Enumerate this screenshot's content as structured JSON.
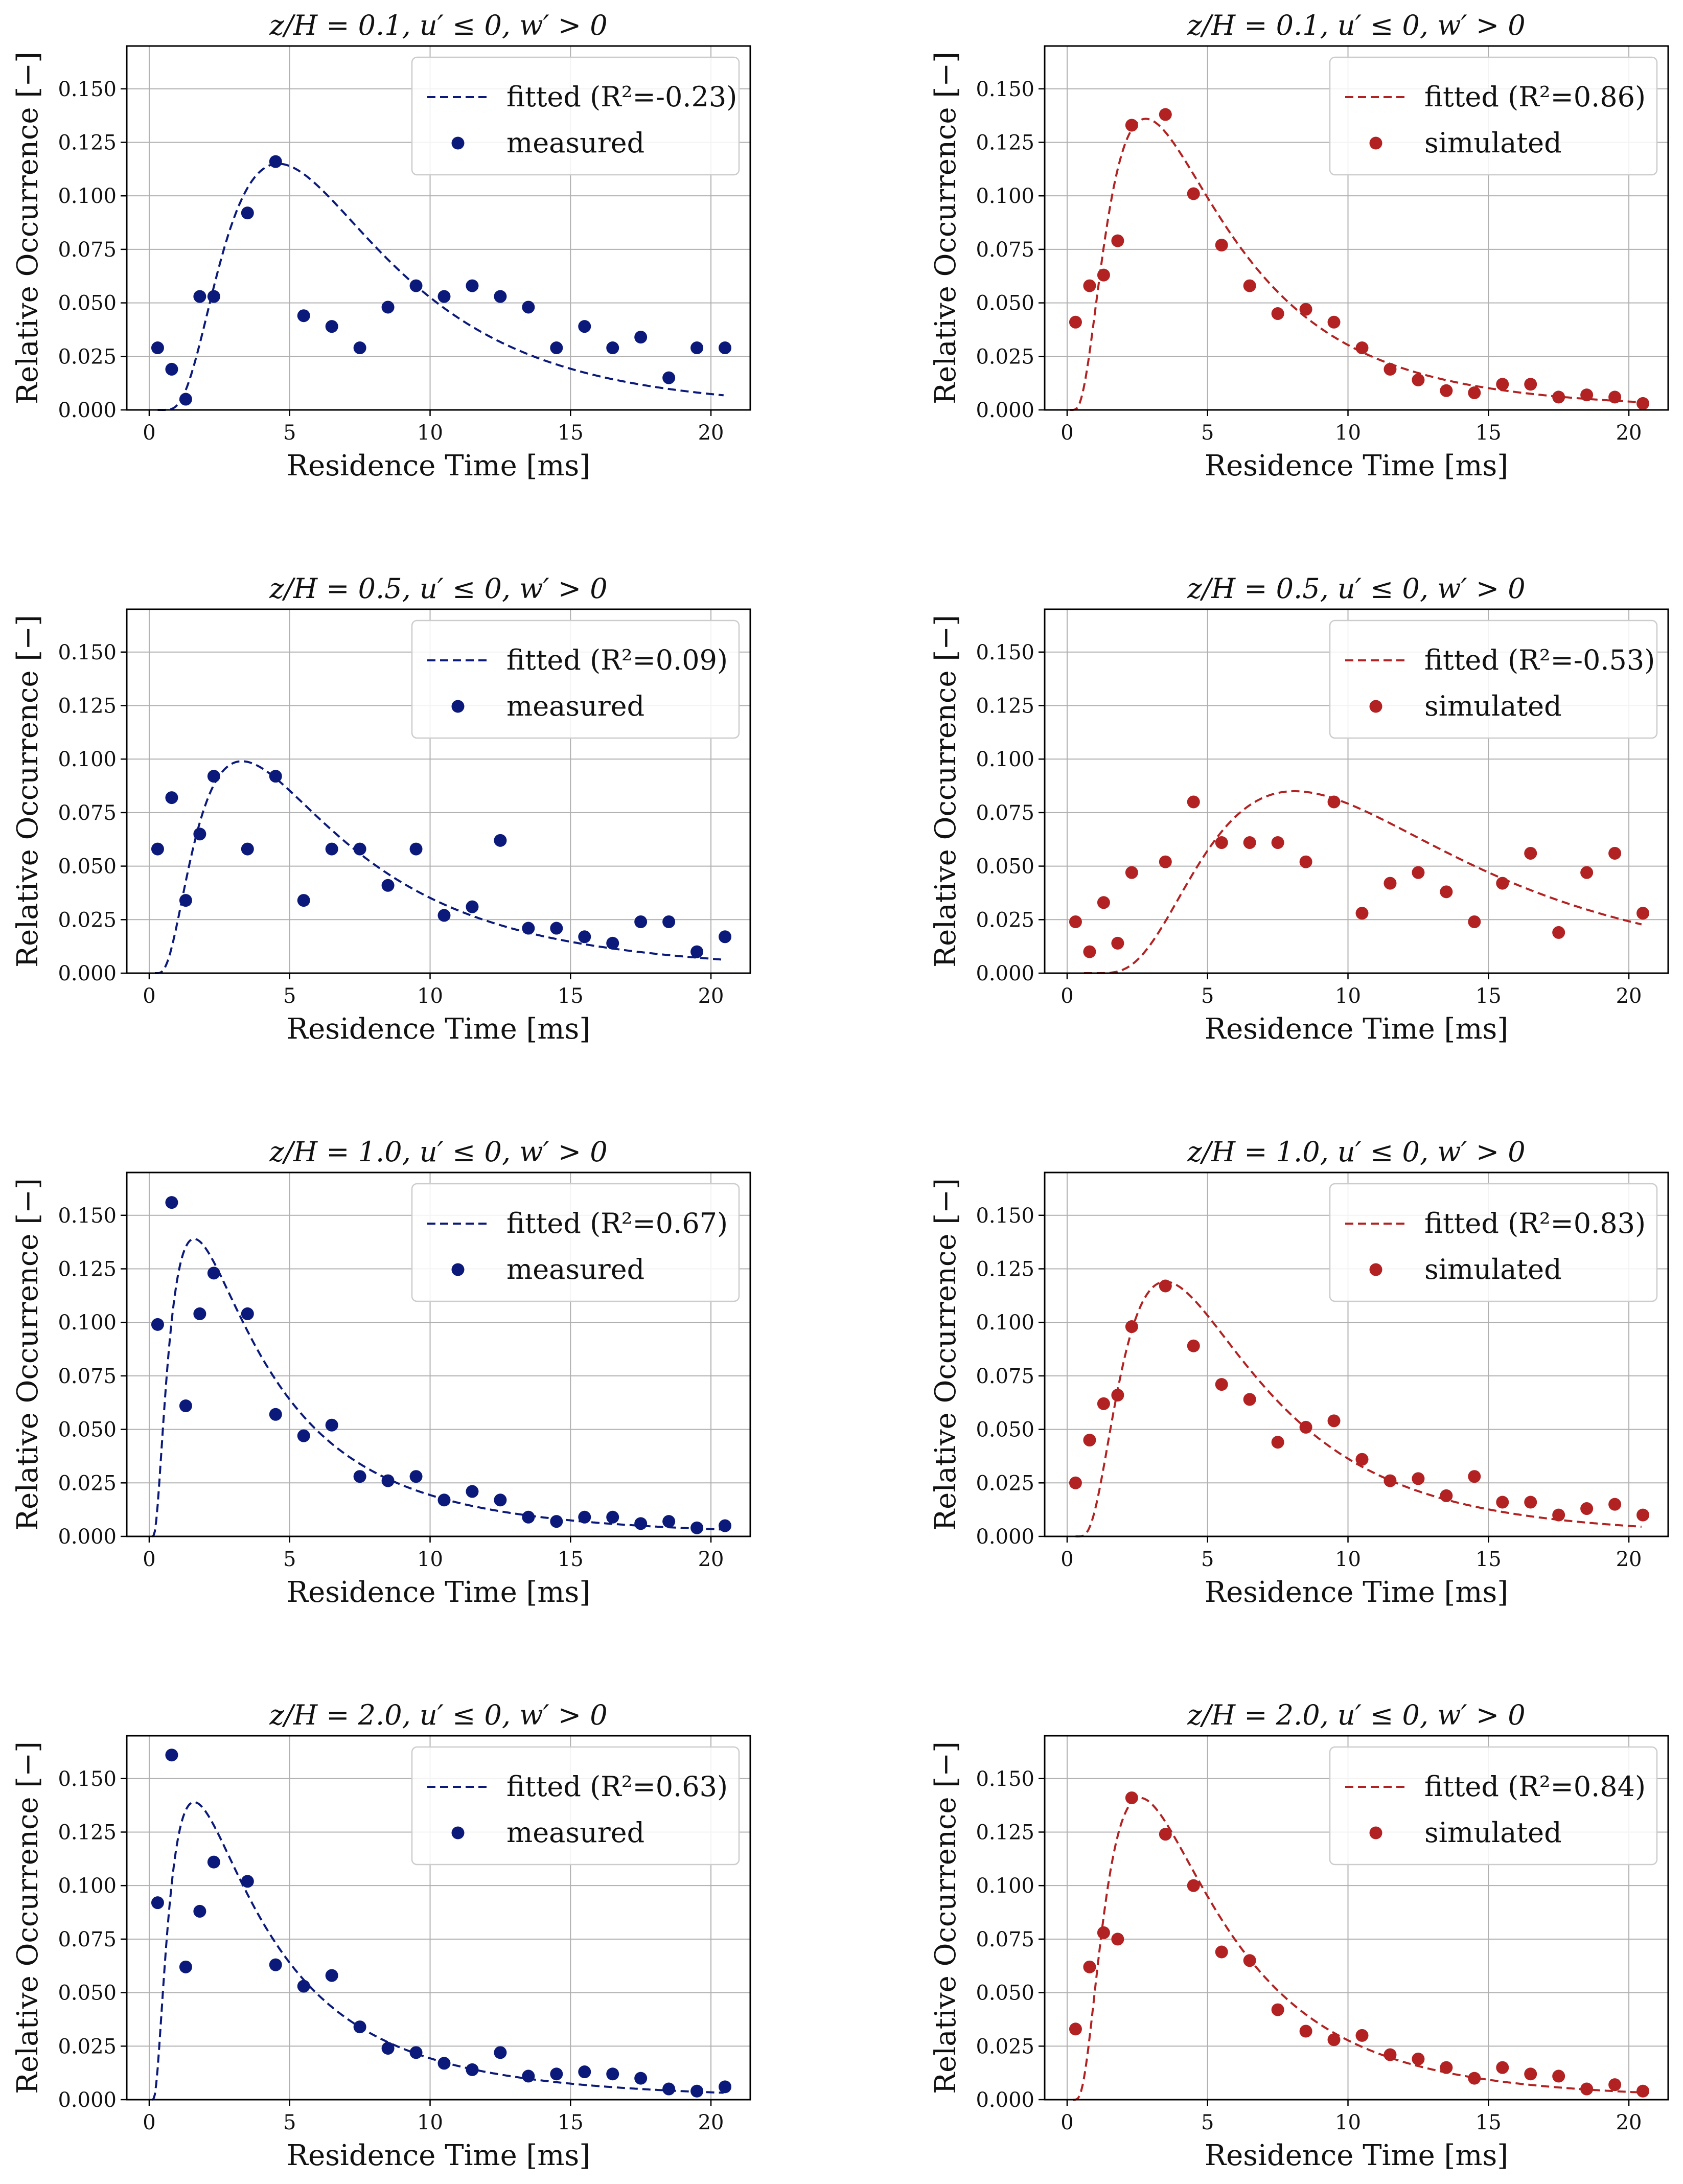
{
  "colors": {
    "blue": "#0b1a7a",
    "red": "#b22222",
    "grid": "#b0b0b0"
  },
  "chart_data": [
    {
      "type": "scatter",
      "title": "z/H = 0.1, u′ ≤ 0, w′ > 0",
      "xlabel": "Residence Time [ms]",
      "ylabel": "Relative Occurrence [−]",
      "xlim": [
        -0.8,
        21.4
      ],
      "ylim": [
        0,
        0.17
      ],
      "xticks": [
        "0",
        "5",
        "10",
        "15",
        "20"
      ],
      "yticks": [
        "0.000",
        "0.025",
        "0.050",
        "0.075",
        "0.100",
        "0.125",
        "0.150"
      ],
      "color": "blue",
      "fit_label": "fitted (R²=-0.23)",
      "points_label": "measured",
      "fit": {
        "mode": 4.3,
        "sigma": 0.65,
        "peak": 0.115,
        "onset": 0.3
      },
      "x": [
        0.3,
        0.8,
        1.3,
        1.8,
        2.3,
        3.5,
        4.5,
        5.5,
        6.5,
        7.5,
        8.5,
        9.5,
        10.5,
        11.5,
        12.5,
        13.5,
        14.5,
        15.5,
        16.5,
        17.5,
        18.5,
        19.5,
        20.5
      ],
      "y": [
        0.029,
        0.019,
        0.005,
        0.053,
        0.053,
        0.092,
        0.116,
        0.044,
        0.039,
        0.029,
        0.048,
        0.058,
        0.053,
        0.058,
        0.053,
        0.048,
        0.029,
        0.039,
        0.029,
        0.034,
        0.015,
        0.029,
        0.029
      ]
    },
    {
      "type": "scatter",
      "title": "z/H = 0.1, u′ ≤ 0, w′ > 0",
      "xlabel": "Residence Time [ms]",
      "ylabel": "Relative Occurrence [−]",
      "xlim": [
        -0.8,
        21.4
      ],
      "ylim": [
        0,
        0.17
      ],
      "xticks": [
        "0",
        "5",
        "10",
        "15",
        "20"
      ],
      "yticks": [
        "0.000",
        "0.025",
        "0.050",
        "0.075",
        "0.100",
        "0.125",
        "0.150"
      ],
      "color": "red",
      "fit_label": "fitted (R²=0.86)",
      "points_label": "simulated",
      "fit": {
        "mode": 2.7,
        "sigma": 0.75,
        "peak": 0.136,
        "onset": 0.1
      },
      "x": [
        0.3,
        0.8,
        1.3,
        1.8,
        2.3,
        3.5,
        4.5,
        5.5,
        6.5,
        7.5,
        8.5,
        9.5,
        10.5,
        11.5,
        12.5,
        13.5,
        14.5,
        15.5,
        16.5,
        17.5,
        18.5,
        19.5,
        20.5
      ],
      "y": [
        0.041,
        0.058,
        0.063,
        0.079,
        0.133,
        0.138,
        0.101,
        0.077,
        0.058,
        0.045,
        0.047,
        0.041,
        0.029,
        0.019,
        0.014,
        0.009,
        0.008,
        0.012,
        0.012,
        0.006,
        0.007,
        0.006,
        0.003
      ]
    },
    {
      "type": "scatter",
      "title": "z/H = 0.5, u′ ≤ 0, w′ > 0",
      "xlabel": "Residence Time [ms]",
      "ylabel": "Relative Occurrence [−]",
      "xlim": [
        -0.8,
        21.4
      ],
      "ylim": [
        0,
        0.17
      ],
      "xticks": [
        "0",
        "5",
        "10",
        "15",
        "20"
      ],
      "yticks": [
        "0.000",
        "0.025",
        "0.050",
        "0.075",
        "0.100",
        "0.125",
        "0.150"
      ],
      "color": "blue",
      "fit_label": "fitted (R²=0.09)",
      "points_label": "measured",
      "fit": {
        "mode": 3.1,
        "sigma": 0.8,
        "peak": 0.099,
        "onset": 0.2
      },
      "x": [
        0.3,
        0.8,
        1.3,
        1.8,
        2.3,
        3.5,
        4.5,
        5.5,
        6.5,
        7.5,
        8.5,
        9.5,
        10.5,
        11.5,
        12.5,
        13.5,
        14.5,
        15.5,
        16.5,
        17.5,
        18.5,
        19.5,
        20.5
      ],
      "y": [
        0.058,
        0.082,
        0.034,
        0.065,
        0.092,
        0.058,
        0.092,
        0.034,
        0.058,
        0.058,
        0.041,
        0.058,
        0.027,
        0.031,
        0.062,
        0.021,
        0.021,
        0.017,
        0.014,
        0.024,
        0.024,
        0.01,
        0.017
      ]
    },
    {
      "type": "scatter",
      "title": "z/H = 0.5, u′ ≤ 0, w′ > 0",
      "xlabel": "Residence Time [ms]",
      "ylabel": "Relative Occurrence [−]",
      "xlim": [
        -0.8,
        21.4
      ],
      "ylim": [
        0,
        0.17
      ],
      "xticks": [
        "0",
        "5",
        "10",
        "15",
        "20"
      ],
      "yticks": [
        "0.000",
        "0.025",
        "0.050",
        "0.075",
        "0.100",
        "0.125",
        "0.150"
      ],
      "color": "red",
      "fit_label": "fitted (R²=-0.53)",
      "points_label": "simulated",
      "fit": {
        "mode": 7.5,
        "sigma": 0.6,
        "peak": 0.085,
        "onset": 0.6
      },
      "x": [
        0.3,
        0.8,
        1.3,
        1.8,
        2.3,
        3.5,
        4.5,
        5.5,
        6.5,
        7.5,
        8.5,
        9.5,
        10.5,
        11.5,
        12.5,
        13.5,
        14.5,
        15.5,
        16.5,
        17.5,
        18.5,
        19.5,
        20.5
      ],
      "y": [
        0.024,
        0.01,
        0.033,
        0.014,
        0.047,
        0.052,
        0.08,
        0.061,
        0.061,
        0.061,
        0.052,
        0.08,
        0.028,
        0.042,
        0.047,
        0.038,
        0.024,
        0.042,
        0.056,
        0.019,
        0.047,
        0.056,
        0.028
      ]
    },
    {
      "type": "scatter",
      "title": "z/H = 1.0, u′ ≤ 0, w′ > 0",
      "xlabel": "Residence Time [ms]",
      "ylabel": "Relative Occurrence [−]",
      "xlim": [
        -0.8,
        21.4
      ],
      "ylim": [
        0,
        0.17
      ],
      "xticks": [
        "0",
        "5",
        "10",
        "15",
        "20"
      ],
      "yticks": [
        "0.000",
        "0.025",
        "0.050",
        "0.075",
        "0.100",
        "0.125",
        "0.150"
      ],
      "color": "blue",
      "fit_label": "fitted (R²=0.67)",
      "points_label": "measured",
      "fit": {
        "mode": 1.5,
        "sigma": 0.95,
        "peak": 0.139,
        "onset": 0.1
      },
      "x": [
        0.3,
        0.8,
        1.3,
        1.8,
        2.3,
        3.5,
        4.5,
        5.5,
        6.5,
        7.5,
        8.5,
        9.5,
        10.5,
        11.5,
        12.5,
        13.5,
        14.5,
        15.5,
        16.5,
        17.5,
        18.5,
        19.5,
        20.5
      ],
      "y": [
        0.099,
        0.156,
        0.061,
        0.104,
        0.123,
        0.104,
        0.057,
        0.047,
        0.052,
        0.028,
        0.026,
        0.028,
        0.017,
        0.021,
        0.017,
        0.009,
        0.007,
        0.009,
        0.009,
        0.006,
        0.007,
        0.004,
        0.005
      ]
    },
    {
      "type": "scatter",
      "title": "z/H = 1.0, u′ ≤ 0, w′ > 0",
      "xlabel": "Residence Time [ms]",
      "ylabel": "Relative Occurrence [−]",
      "xlim": [
        -0.8,
        21.4
      ],
      "ylim": [
        0,
        0.17
      ],
      "xticks": [
        "0",
        "5",
        "10",
        "15",
        "20"
      ],
      "yticks": [
        "0.000",
        "0.025",
        "0.050",
        "0.075",
        "0.100",
        "0.125",
        "0.150"
      ],
      "color": "red",
      "fit_label": "fitted (R²=0.83)",
      "points_label": "simulated",
      "fit": {
        "mode": 3.2,
        "sigma": 0.72,
        "peak": 0.119,
        "onset": 0.3
      },
      "x": [
        0.3,
        0.8,
        1.3,
        1.8,
        2.3,
        3.5,
        4.5,
        5.5,
        6.5,
        7.5,
        8.5,
        9.5,
        10.5,
        11.5,
        12.5,
        13.5,
        14.5,
        15.5,
        16.5,
        17.5,
        18.5,
        19.5,
        20.5
      ],
      "y": [
        0.025,
        0.045,
        0.062,
        0.066,
        0.098,
        0.117,
        0.089,
        0.071,
        0.064,
        0.044,
        0.051,
        0.054,
        0.036,
        0.026,
        0.027,
        0.019,
        0.028,
        0.016,
        0.016,
        0.01,
        0.013,
        0.015,
        0.01
      ]
    },
    {
      "type": "scatter",
      "title": "z/H = 2.0, u′ ≤ 0, w′ > 0",
      "xlabel": "Residence Time [ms]",
      "ylabel": "Relative Occurrence [−]",
      "xlim": [
        -0.8,
        21.4
      ],
      "ylim": [
        0,
        0.17
      ],
      "xticks": [
        "0",
        "5",
        "10",
        "15",
        "20"
      ],
      "yticks": [
        "0.000",
        "0.025",
        "0.050",
        "0.075",
        "0.100",
        "0.125",
        "0.150"
      ],
      "color": "blue",
      "fit_label": "fitted (R²=0.63)",
      "points_label": "measured",
      "fit": {
        "mode": 1.5,
        "sigma": 0.95,
        "peak": 0.139,
        "onset": 0.1
      },
      "x": [
        0.3,
        0.8,
        1.3,
        1.8,
        2.3,
        3.5,
        4.5,
        5.5,
        6.5,
        7.5,
        8.5,
        9.5,
        10.5,
        11.5,
        12.5,
        13.5,
        14.5,
        15.5,
        16.5,
        17.5,
        18.5,
        19.5,
        20.5
      ],
      "y": [
        0.092,
        0.161,
        0.062,
        0.088,
        0.111,
        0.102,
        0.063,
        0.053,
        0.058,
        0.034,
        0.024,
        0.022,
        0.017,
        0.014,
        0.022,
        0.011,
        0.012,
        0.013,
        0.012,
        0.01,
        0.005,
        0.004,
        0.006
      ]
    },
    {
      "type": "scatter",
      "title": "z/H = 2.0, u′ ≤ 0, w′ > 0",
      "xlabel": "Residence Time [ms]",
      "ylabel": "Relative Occurrence [−]",
      "xlim": [
        -0.8,
        21.4
      ],
      "ylim": [
        0,
        0.17
      ],
      "xticks": [
        "0",
        "5",
        "10",
        "15",
        "20"
      ],
      "yticks": [
        "0.000",
        "0.025",
        "0.050",
        "0.075",
        "0.100",
        "0.125",
        "0.150"
      ],
      "color": "red",
      "fit_label": "fitted (R²=0.84)",
      "points_label": "simulated",
      "fit": {
        "mode": 2.4,
        "sigma": 0.78,
        "peak": 0.141,
        "onset": 0.2
      },
      "x": [
        0.3,
        0.8,
        1.3,
        1.8,
        2.3,
        3.5,
        4.5,
        5.5,
        6.5,
        7.5,
        8.5,
        9.5,
        10.5,
        11.5,
        12.5,
        13.5,
        14.5,
        15.5,
        16.5,
        17.5,
        18.5,
        19.5,
        20.5
      ],
      "y": [
        0.033,
        0.062,
        0.078,
        0.075,
        0.141,
        0.124,
        0.1,
        0.069,
        0.065,
        0.042,
        0.032,
        0.028,
        0.03,
        0.021,
        0.019,
        0.015,
        0.01,
        0.015,
        0.012,
        0.011,
        0.005,
        0.007,
        0.004
      ]
    }
  ]
}
